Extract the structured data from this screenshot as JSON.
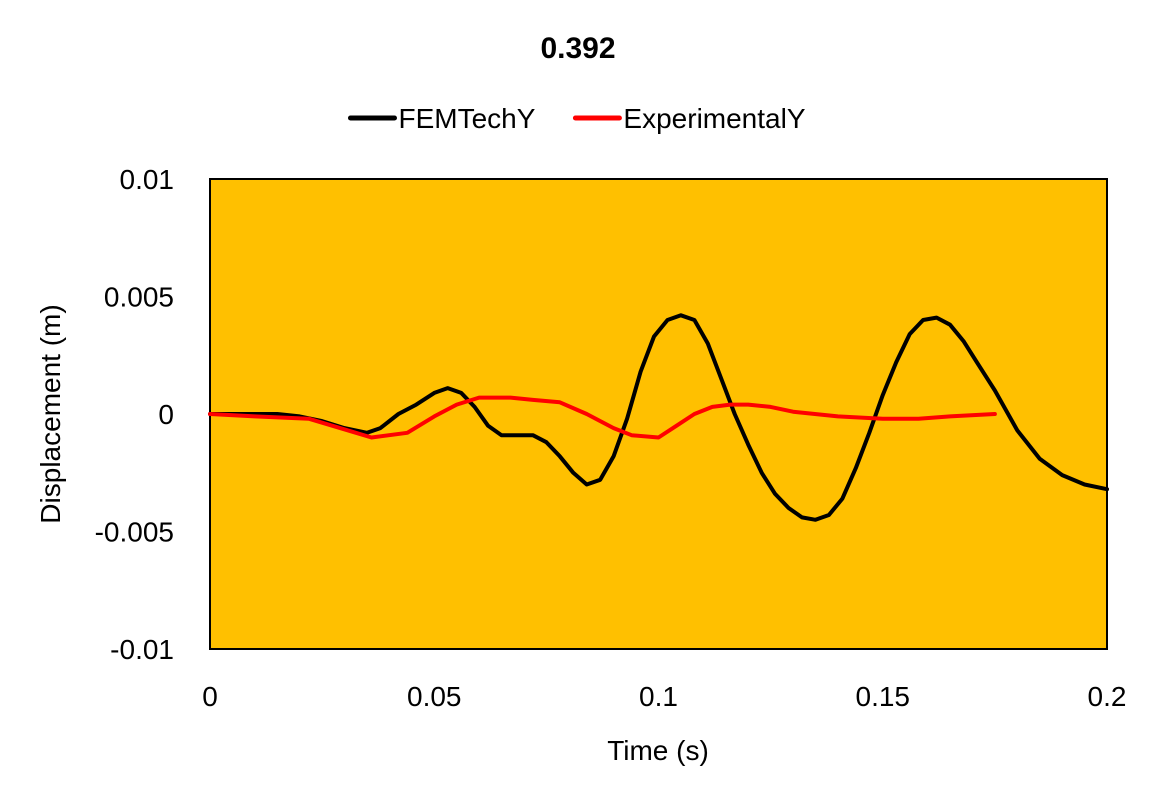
{
  "chart_data": {
    "type": "line",
    "title": "0.392",
    "xlabel": "Time (s)",
    "ylabel": "Displacement (m)",
    "xlim": [
      0,
      0.2
    ],
    "ylim": [
      -0.01,
      0.01
    ],
    "x_ticks": [
      0,
      0.05,
      0.1,
      0.15,
      0.2
    ],
    "x_tick_labels": [
      "0",
      "0.05",
      "0.1",
      "0.15",
      "0.2"
    ],
    "y_ticks": [
      0.01,
      0.005,
      0,
      -0.005,
      -0.01
    ],
    "y_tick_labels": [
      "0.01",
      "0.005",
      "0",
      "-0.005",
      "-0.01"
    ],
    "grid": false,
    "legend_position": "top",
    "plot_background": "#FFC000",
    "series": [
      {
        "name": "FEMTechY",
        "color": "#000000",
        "x": [
          0,
          0.005,
          0.01,
          0.015,
          0.02,
          0.025,
          0.03,
          0.035,
          0.038,
          0.042,
          0.046,
          0.05,
          0.053,
          0.056,
          0.059,
          0.062,
          0.065,
          0.068,
          0.072,
          0.075,
          0.078,
          0.081,
          0.084,
          0.087,
          0.09,
          0.093,
          0.096,
          0.099,
          0.102,
          0.105,
          0.108,
          0.111,
          0.114,
          0.117,
          0.12,
          0.123,
          0.126,
          0.129,
          0.132,
          0.135,
          0.138,
          0.141,
          0.144,
          0.147,
          0.15,
          0.153,
          0.156,
          0.159,
          0.162,
          0.165,
          0.168,
          0.171,
          0.175,
          0.18,
          0.185,
          0.19,
          0.195,
          0.2
        ],
        "y": [
          0,
          0,
          0,
          0,
          -0.0001,
          -0.0003,
          -0.0006,
          -0.0008,
          -0.0006,
          0,
          0.0004,
          0.0009,
          0.0011,
          0.0009,
          0.0003,
          -0.0005,
          -0.0009,
          -0.0009,
          -0.0009,
          -0.0012,
          -0.0018,
          -0.0025,
          -0.003,
          -0.0028,
          -0.0018,
          -0.0002,
          0.0018,
          0.0033,
          0.004,
          0.0042,
          0.004,
          0.003,
          0.0015,
          0,
          -0.0013,
          -0.0025,
          -0.0034,
          -0.004,
          -0.0044,
          -0.0045,
          -0.0043,
          -0.0036,
          -0.0023,
          -0.0008,
          0.0008,
          0.0022,
          0.0034,
          0.004,
          0.0041,
          0.0038,
          0.0031,
          0.0022,
          0.001,
          -0.0007,
          -0.0019,
          -0.0026,
          -0.003,
          -0.0032
        ]
      },
      {
        "name": "ExperimentalY",
        "color": "#FF0000",
        "x": [
          0,
          0.01,
          0.022,
          0.029,
          0.036,
          0.044,
          0.05,
          0.055,
          0.06,
          0.067,
          0.072,
          0.078,
          0.084,
          0.09,
          0.094,
          0.1,
          0.104,
          0.108,
          0.112,
          0.116,
          0.12,
          0.125,
          0.13,
          0.14,
          0.15,
          0.158,
          0.165,
          0.175
        ],
        "y": [
          0,
          -0.0001,
          -0.0002,
          -0.0006,
          -0.001,
          -0.0008,
          -0.0001,
          0.0004,
          0.0007,
          0.0007,
          0.0006,
          0.0005,
          0,
          -0.0006,
          -0.0009,
          -0.001,
          -0.0005,
          0,
          0.0003,
          0.0004,
          0.0004,
          0.0003,
          0.0001,
          -0.0001,
          -0.0002,
          -0.0002,
          -0.0001,
          0
        ]
      }
    ]
  }
}
